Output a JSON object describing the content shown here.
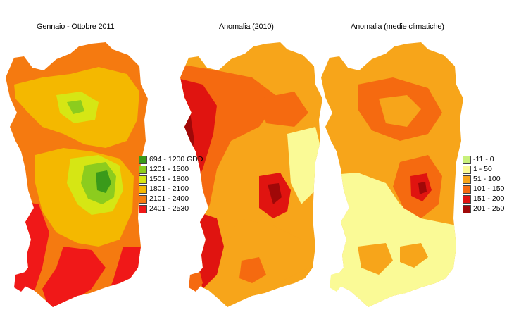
{
  "titles": {
    "map1": "Gennaio - Ottobre 2011",
    "map2": "Anomalia (2010)",
    "map3": "Anomalia (medie climatiche)"
  },
  "legend1": {
    "items": [
      {
        "label": "694 - 1200 GDD",
        "color": "#3a9a1a"
      },
      {
        "label": "1201 - 1500",
        "color": "#8ccc1e"
      },
      {
        "label": "1501 - 1800",
        "color": "#d6e614"
      },
      {
        "label": "1801 - 2100",
        "color": "#f4b800"
      },
      {
        "label": "2101 - 2400",
        "color": "#f57a10"
      },
      {
        "label": "2401 - 2530",
        "color": "#f01818"
      }
    ]
  },
  "legend2": {
    "items": [
      {
        "label": "-11 - 0",
        "color": "#c8f07a"
      },
      {
        "label": "1 - 50",
        "color": "#fafa96"
      },
      {
        "label": "51 - 100",
        "color": "#f7a51a"
      },
      {
        "label": "101 - 150",
        "color": "#f56a10"
      },
      {
        "label": "151 - 200",
        "color": "#e01410"
      },
      {
        "label": "201 - 250",
        "color": "#a00808"
      }
    ]
  }
}
